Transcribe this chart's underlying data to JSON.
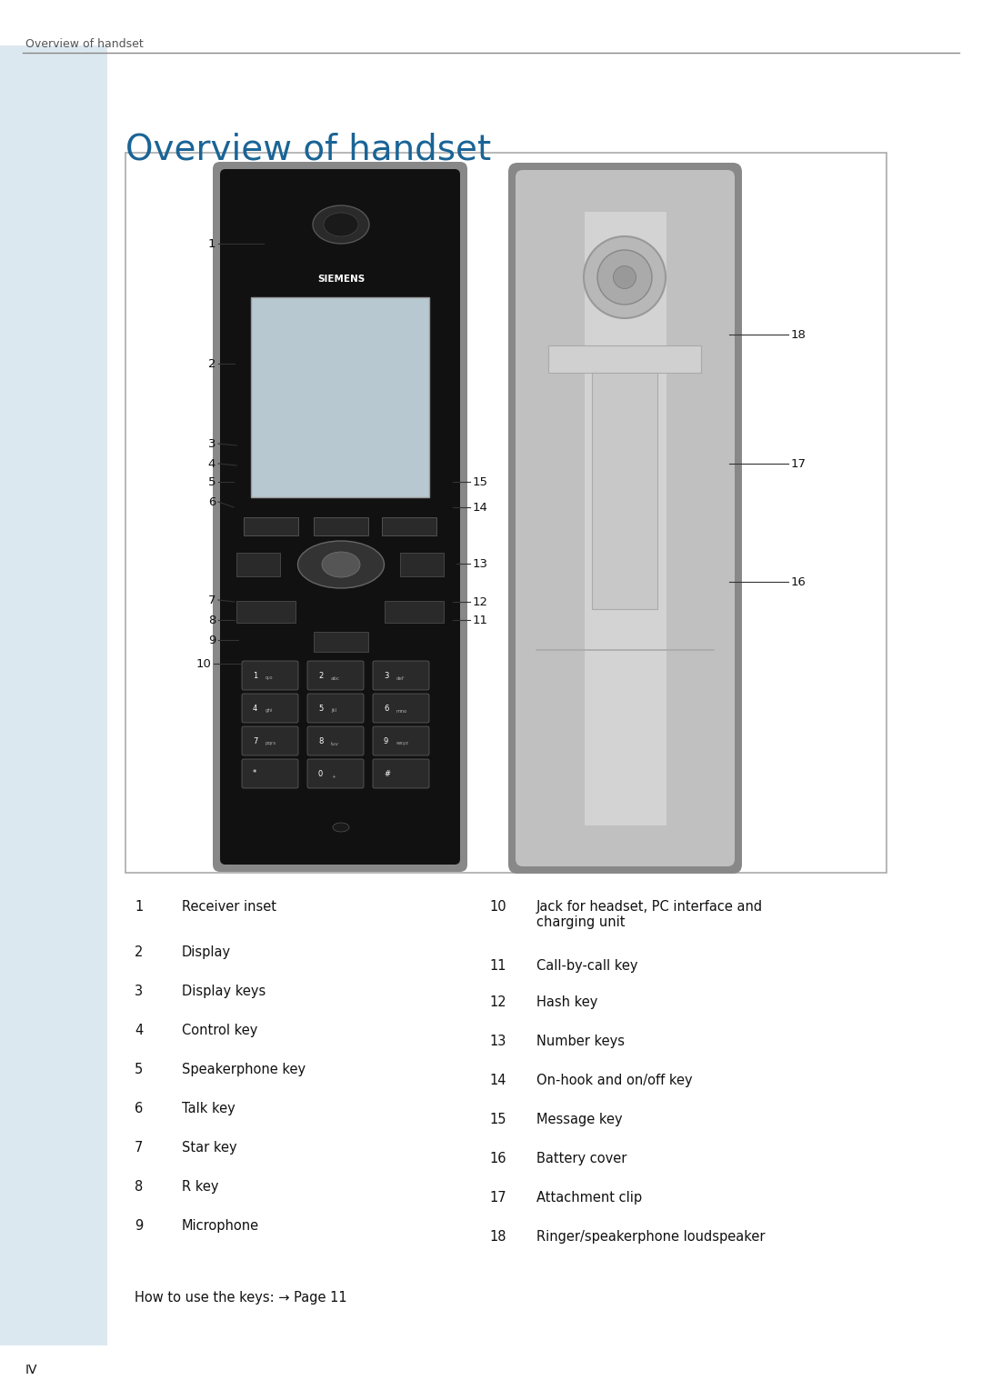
{
  "page_title": "Overview of handset",
  "header_text": "Overview of handset",
  "bg_color": "#ffffff",
  "sidebar_color": "#dce8f0",
  "title_color": "#1a6496",
  "header_color": "#555555",
  "box_border_color": "#aaaaaa",
  "footer_text": "IV",
  "items_col1": [
    {
      "num": "1",
      "text": "Receiver inset"
    },
    {
      "num": "2",
      "text": "Display"
    },
    {
      "num": "3",
      "text": "Display keys"
    },
    {
      "num": "4",
      "text": "Control key"
    },
    {
      "num": "5",
      "text": "Speakerphone key"
    },
    {
      "num": "6",
      "text": "Talk key"
    },
    {
      "num": "7",
      "text": "Star key"
    },
    {
      "num": "8",
      "text": "R key"
    },
    {
      "num": "9",
      "text": "Microphone"
    }
  ],
  "items_col2": [
    {
      "num": "10",
      "text": "Jack for headset, PC interface and\ncharging unit"
    },
    {
      "num": "11",
      "text": "Call-by-call key"
    },
    {
      "num": "12",
      "text": "Hash key"
    },
    {
      "num": "13",
      "text": "Number keys"
    },
    {
      "num": "14",
      "text": "On-hook and on/off key"
    },
    {
      "num": "15",
      "text": "Message key"
    },
    {
      "num": "16",
      "text": "Battery cover"
    },
    {
      "num": "17",
      "text": "Attachment clip"
    },
    {
      "num": "18",
      "text": "Ringer/speakerphone loudspeaker"
    }
  ],
  "footer_note": "How to use the keys: → Page 11"
}
